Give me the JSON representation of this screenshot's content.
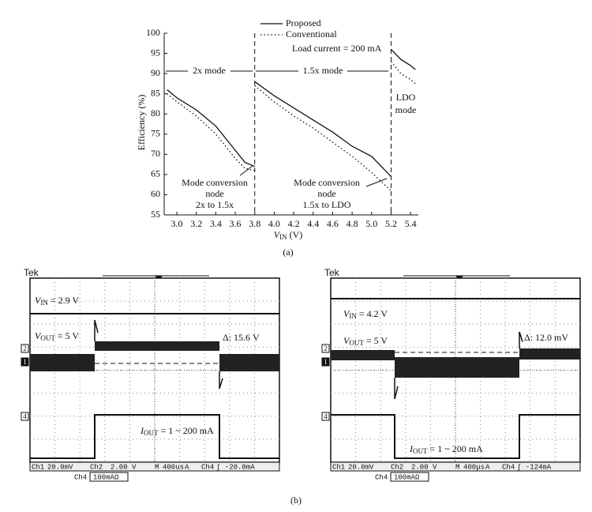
{
  "chart_data": {
    "type": "line",
    "y_label": "Efficiency (%)",
    "x_label": {
      "main": "V",
      "sub": "IN",
      "rest": " (V)"
    },
    "x": [
      2.9,
      3.0,
      3.2,
      3.4,
      3.6,
      3.7,
      3.8,
      3.8,
      3.8,
      4.0,
      4.2,
      4.4,
      4.6,
      4.8,
      5.0,
      5.2,
      5.2,
      5.2,
      5.3,
      5.4,
      5.45
    ],
    "series": [
      {
        "name": "Proposed",
        "color": "#111111",
        "dash": "solid",
        "values": [
          86,
          84,
          81,
          77,
          71,
          68,
          67,
          null,
          88,
          84.5,
          81.5,
          78.5,
          75.5,
          72,
          69.5,
          64.5,
          null,
          96,
          93.5,
          92,
          91
        ]
      },
      {
        "name": "Conventional",
        "color": "#111111",
        "dash": "dotted",
        "values": [
          85,
          83,
          79.5,
          75,
          69,
          66.5,
          66,
          null,
          87,
          83,
          79.5,
          76.5,
          73,
          69.5,
          65.5,
          61,
          null,
          93,
          90,
          88.5,
          87.5
        ]
      }
    ],
    "xlim": [
      2.87,
      5.48
    ],
    "ylim": [
      55,
      100
    ],
    "xticks": [
      {
        "value": 3.0,
        "label": "3.0"
      },
      {
        "value": 3.2,
        "label": "3.2"
      },
      {
        "value": 3.4,
        "label": "3.4"
      },
      {
        "value": 3.6,
        "label": "3.6"
      },
      {
        "value": 3.8,
        "label": "3.8"
      },
      {
        "value": 4.0,
        "label": "4.0"
      },
      {
        "value": 4.2,
        "label": "4.2"
      },
      {
        "value": 4.4,
        "label": "4.4"
      },
      {
        "value": 4.6,
        "label": "4.6"
      },
      {
        "value": 4.8,
        "label": "4.8"
      },
      {
        "value": 5.0,
        "label": "5.0"
      },
      {
        "value": 5.2,
        "label": "5.2"
      },
      {
        "value": 5.4,
        "label": "5.4"
      }
    ],
    "yticks": [
      55,
      60,
      65,
      70,
      75,
      80,
      85,
      90,
      95,
      100
    ],
    "mode_boundaries": [
      3.8,
      5.2
    ],
    "annotations": {
      "load": "Load current = 200 mA",
      "mode_2x": "2x mode",
      "mode_15x": "1.5x mode",
      "mode_ldo": [
        "LDO",
        "mode"
      ],
      "node1": [
        "Mode conversion",
        "node",
        "2x to 1.5x"
      ],
      "node2": [
        "Mode conversion",
        "node",
        "1.5x to LDO"
      ]
    },
    "caption": "(a)"
  },
  "scopes": [
    {
      "header": "Tek",
      "vin": {
        "main": "V",
        "sub": "IN",
        "rest": " = 2.9 V"
      },
      "vout": {
        "main": "V",
        "sub": "OUT",
        "rest": " = 5 V"
      },
      "delta": "Δ:  15.6 V",
      "iout": {
        "main": "I",
        "sub": "OUT",
        "rest": " = 1 ~ 200 mA"
      },
      "channels": [
        "2",
        "1",
        "4"
      ],
      "status": [
        "Ch1",
        "20.0mV",
        "Ch2",
        "2.00 V",
        "M",
        "400us",
        "A",
        "Ch4",
        "∫ -20.0mA"
      ],
      "status2": [
        "Ch4",
        "100mAΩ"
      ]
    },
    {
      "header": "Tek",
      "vin": {
        "main": "V",
        "sub": "IN",
        "rest": " = 4.2 V"
      },
      "vout": {
        "main": "V",
        "sub": "OUT",
        "rest": " = 5 V"
      },
      "delta": "Δ: 12.0 mV",
      "iout": {
        "main": "I",
        "sub": "OUT",
        "rest": " = 1 ~ 200 mA"
      },
      "channels": [
        "2",
        "1",
        "4"
      ],
      "status": [
        "Ch1",
        "20.0mV",
        "Ch2",
        "2.00 V",
        "M",
        "400μs",
        "A",
        "Ch4",
        "∫ -124mA"
      ],
      "status2": [
        "Ch4",
        "100mAΩ"
      ]
    }
  ],
  "caption_b": "(b)"
}
